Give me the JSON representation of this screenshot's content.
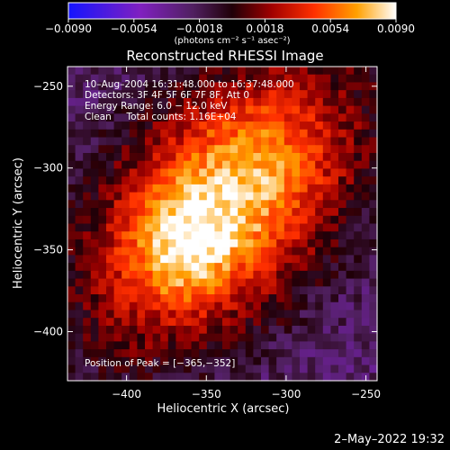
{
  "chart_data": {
    "type": "heatmap",
    "title": "Reconstructed RHESSI Image",
    "xlabel": "Heliocentric X (arcsec)",
    "ylabel": "Heliocentric Y (arcsec)",
    "xlim": [
      -437,
      -243
    ],
    "ylim": [
      -430,
      -238
    ],
    "x_ticks": [
      -400,
      -350,
      -300,
      -250
    ],
    "y_ticks": [
      -250,
      -300,
      -350,
      -400
    ],
    "x_tick_labels": [
      "−400",
      "−350",
      "−300",
      "−250"
    ],
    "y_tick_labels": [
      "−250",
      "−300",
      "−350",
      "−400"
    ],
    "colorbar": {
      "min": -0.009,
      "max": 0.009,
      "ticks": [
        -0.009,
        -0.0054,
        -0.0018,
        0.0018,
        0.0054,
        0.009
      ],
      "tick_labels": [
        "−0.0090",
        "−0.0054",
        "−0.0018",
        "0.0018",
        "0.0054",
        "0.0090"
      ],
      "unit_label": "(photons cm⁻² s⁻¹ asec⁻²)",
      "colormap": "rainbow-to-hot"
    },
    "annotations": [
      "10–Aug–2004 16:31:48.000 to 16:37:48.000",
      "Detectors: 3F 4F 5F 6F 7F 8F, Att 0",
      "Energy Range: 6.0 − 12.0 keV",
      "Clean     Total counts: 1.16E+04"
    ],
    "peak_label": "Position of Peak = [−365,−352]",
    "peak": {
      "x": -365,
      "y": -352
    },
    "source_peak_value": 0.009,
    "background_value": -0.0025
  },
  "timestamp": "2–May–2022 19:32"
}
